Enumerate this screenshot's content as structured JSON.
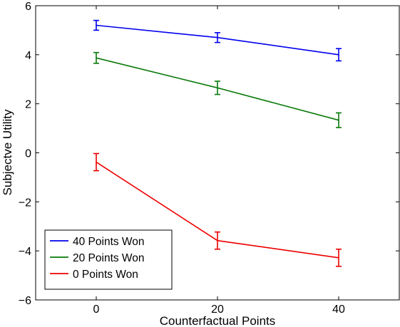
{
  "chart_data": {
    "type": "line",
    "title": "",
    "xlabel": "Counterfactual Points",
    "ylabel": "Subjectve Utility",
    "xlim": [
      -10,
      50
    ],
    "ylim": [
      -6,
      6
    ],
    "xticks": [
      0,
      20,
      40
    ],
    "yticks": [
      -6,
      -4,
      -2,
      0,
      2,
      4,
      6
    ],
    "ytick_labels": [
      "−6",
      "−4",
      "−2",
      "0",
      "2",
      "4",
      "6"
    ],
    "grid": false,
    "legend_position": "bottom-left",
    "x": [
      0,
      20,
      40
    ],
    "series": [
      {
        "name": "40 Points Won",
        "color": "#0000ee",
        "values": [
          5.2,
          4.7,
          4.0
        ],
        "errors": [
          0.2,
          0.2,
          0.25
        ]
      },
      {
        "name": "20 Points Won",
        "color": "#0a7a0a",
        "values": [
          3.87,
          2.65,
          1.33
        ],
        "errors": [
          0.22,
          0.27,
          0.3
        ]
      },
      {
        "name": "0 Points Won",
        "color": "#ee0000",
        "values": [
          -0.38,
          -3.58,
          -4.28
        ],
        "errors": [
          0.35,
          0.35,
          0.35
        ]
      }
    ]
  }
}
